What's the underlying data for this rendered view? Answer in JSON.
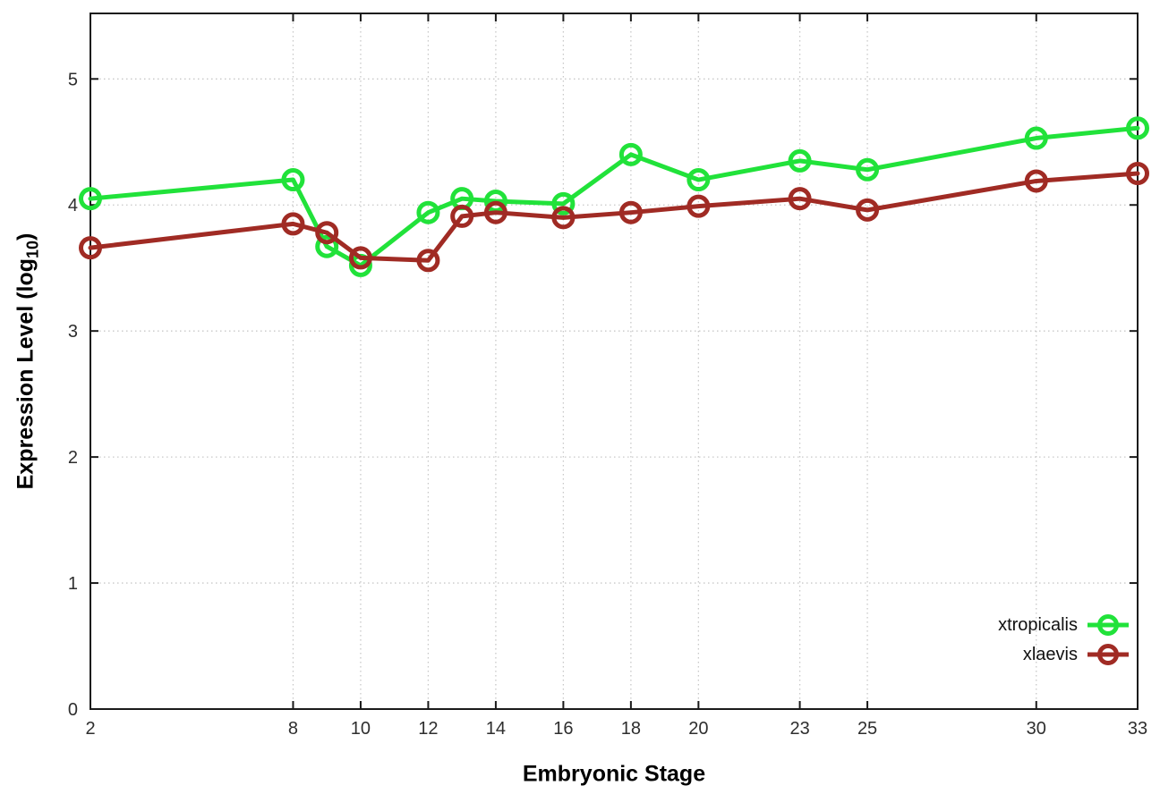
{
  "page": {
    "background": "#ffffff"
  },
  "chart_data": {
    "type": "line",
    "title": "",
    "xlabel": "Embryonic Stage",
    "ylabel": "Expression Level (log10)",
    "ylabel_parts": {
      "pre": "Expression Level (log",
      "sub": "10",
      "post": ")"
    },
    "x": [
      2,
      8,
      9,
      10,
      12,
      13,
      14,
      16,
      18,
      20,
      23,
      25,
      30,
      33
    ],
    "series": [
      {
        "name": "xtropicalis",
        "color": "#21e23a",
        "marker": "open-circle",
        "values": [
          4.05,
          4.2,
          3.67,
          3.52,
          3.94,
          4.05,
          4.03,
          4.01,
          4.4,
          4.2,
          4.35,
          4.28,
          4.53,
          4.61
        ]
      },
      {
        "name": "xlaevis",
        "color": "#a02b24",
        "marker": "open-circle",
        "values": [
          3.66,
          3.85,
          3.78,
          3.58,
          3.56,
          3.91,
          3.94,
          3.9,
          3.94,
          3.99,
          4.05,
          3.96,
          4.19,
          4.25
        ]
      }
    ],
    "xticks": [
      2,
      8,
      10,
      12,
      14,
      16,
      18,
      20,
      23,
      25,
      30,
      33
    ],
    "yticks": [
      0,
      1,
      2,
      3,
      4,
      5
    ],
    "xlim": [
      2,
      33
    ],
    "ylim": [
      0,
      5.52
    ],
    "grid": true,
    "grid_style": "dotted",
    "legend_position": "bottom-right",
    "line_width": 5,
    "colors": {
      "border": "#1a1a1a",
      "grid": "#c8c8c8",
      "tick_label": "#2e2e2e",
      "axis_label": "#000000"
    }
  }
}
